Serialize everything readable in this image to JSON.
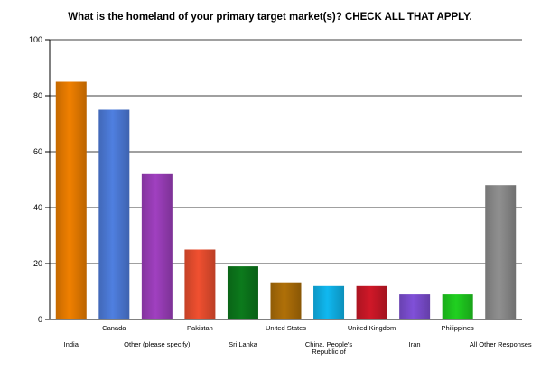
{
  "chart_data": {
    "type": "bar",
    "title": "What is the homeland of your primary target market(s)? CHECK ALL THAT APPLY.",
    "xlabel": "",
    "ylabel": "",
    "ylim": [
      0,
      100
    ],
    "yticks": [
      0,
      20,
      40,
      60,
      80,
      100
    ],
    "grid": true,
    "legend": "none",
    "categories": [
      "India",
      "Canada",
      "Other (please specify)",
      "Pakistan",
      "Sri Lanka",
      "United States",
      "China, People's Republic of",
      "United Kingdom",
      "Iran",
      "Philippines",
      "All Other Responses"
    ],
    "category_label_lines": [
      [
        "India"
      ],
      [
        "Canada"
      ],
      [
        "Other (please specify)"
      ],
      [
        "Pakistan"
      ],
      [
        "Sri Lanka"
      ],
      [
        "United States"
      ],
      [
        "China, People's",
        "Republic of"
      ],
      [
        "United Kingdom"
      ],
      [
        "Iran"
      ],
      [
        "Philippines"
      ],
      [
        "All Other Responses"
      ]
    ],
    "values": [
      85,
      75,
      52,
      25,
      19,
      13,
      12,
      12,
      9,
      9,
      48
    ],
    "colors": [
      "#f08000",
      "#4f7fe0",
      "#a040c0",
      "#f05030",
      "#0c7a1c",
      "#b07008",
      "#10b8f0",
      "#d01828",
      "#8050d8",
      "#20d020",
      "#909090"
    ]
  }
}
